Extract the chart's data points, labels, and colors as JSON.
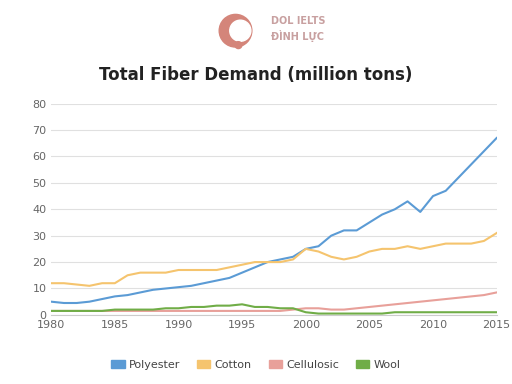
{
  "title": "Total Fiber Demand (million tons)",
  "years": [
    1980,
    1981,
    1982,
    1983,
    1984,
    1985,
    1986,
    1987,
    1988,
    1989,
    1990,
    1991,
    1992,
    1993,
    1994,
    1995,
    1996,
    1997,
    1998,
    1999,
    2000,
    2001,
    2002,
    2003,
    2004,
    2005,
    2006,
    2007,
    2008,
    2009,
    2010,
    2011,
    2012,
    2013,
    2014,
    2015
  ],
  "polyester": [
    5,
    4.5,
    4.5,
    5,
    6,
    7,
    7.5,
    8.5,
    9.5,
    10,
    10.5,
    11,
    12,
    13,
    14,
    16,
    18,
    20,
    21,
    22,
    25,
    26,
    30,
    32,
    32,
    35,
    38,
    40,
    43,
    39,
    45,
    47,
    52,
    57,
    62,
    67
  ],
  "cotton": [
    12,
    12,
    11.5,
    11,
    12,
    12,
    15,
    16,
    16,
    16,
    17,
    17,
    17,
    17,
    18,
    19,
    20,
    20,
    20,
    21,
    25,
    24,
    22,
    21,
    22,
    24,
    25,
    25,
    26,
    25,
    26,
    27,
    27,
    27,
    28,
    31
  ],
  "cellulosic": [
    1.5,
    1.5,
    1.5,
    1.5,
    1.5,
    1.5,
    1.5,
    1.5,
    1.5,
    1.5,
    1.5,
    1.5,
    1.5,
    1.5,
    1.5,
    1.5,
    1.5,
    1.5,
    1.5,
    2,
    2.5,
    2.5,
    2,
    2,
    2.5,
    3,
    3.5,
    4,
    4.5,
    5,
    5.5,
    6,
    6.5,
    7,
    7.5,
    8.5
  ],
  "wool": [
    1.5,
    1.5,
    1.5,
    1.5,
    1.5,
    2,
    2,
    2,
    2,
    2.5,
    2.5,
    3,
    3,
    3.5,
    3.5,
    4,
    3,
    3,
    2.5,
    2.5,
    1,
    0.5,
    0.5,
    0.5,
    0.5,
    0.5,
    0.5,
    1,
    1,
    1,
    1,
    1,
    1,
    1,
    1,
    1
  ],
  "polyester_color": "#5b9bd5",
  "cotton_color": "#f5c46e",
  "cellulosic_color": "#e8a09a",
  "wool_color": "#70ad47",
  "background_color": "#ffffff",
  "grid_color": "#e0e0e0",
  "ylim": [
    0,
    80
  ],
  "xlim": [
    1980,
    2015
  ],
  "yticks": [
    0,
    10,
    20,
    30,
    40,
    50,
    60,
    70,
    80
  ],
  "xticks": [
    1980,
    1985,
    1990,
    1995,
    2000,
    2005,
    2010,
    2015
  ],
  "legend_labels": [
    "Polyester",
    "Cotton",
    "Cellulosic",
    "Wool"
  ],
  "title_fontsize": 12,
  "tick_fontsize": 8,
  "legend_fontsize": 8,
  "watermark_text1": "DOL IELTS",
  "watermark_text2": "ĐÌNH LỰC",
  "logo_color": "#d4857a",
  "watermark_color": "#c8a0a0"
}
